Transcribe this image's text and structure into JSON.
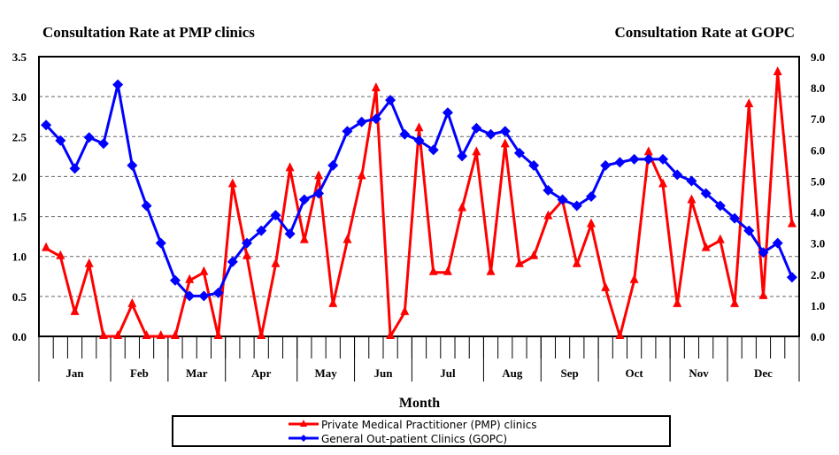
{
  "chart_data": {
    "type": "line",
    "title_left": "Consultation Rate at PMP clinics",
    "title_right": "Consultation Rate at GOPC",
    "xlabel": "Month",
    "months": [
      {
        "label": "Jan",
        "weeks": 5
      },
      {
        "label": "Feb",
        "weeks": 4
      },
      {
        "label": "Mar",
        "weeks": 4
      },
      {
        "label": "Apr",
        "weeks": 5
      },
      {
        "label": "May",
        "weeks": 4
      },
      {
        "label": "Jun",
        "weeks": 4
      },
      {
        "label": "Jul",
        "weeks": 5
      },
      {
        "label": "Aug",
        "weeks": 4
      },
      {
        "label": "Sep",
        "weeks": 4
      },
      {
        "label": "Oct",
        "weeks": 5
      },
      {
        "label": "Nov",
        "weeks": 4
      },
      {
        "label": "Dec",
        "weeks": 5
      }
    ],
    "y_left": {
      "min": 0,
      "max": 3.5,
      "step": 0.5,
      "ticks": [
        "0.0",
        "0.5",
        "1.0",
        "1.5",
        "2.0",
        "2.5",
        "3.0",
        "3.5"
      ]
    },
    "y_right": {
      "min": 0,
      "max": 9,
      "step": 1,
      "ticks": [
        "0.0",
        "1.0",
        "2.0",
        "3.0",
        "4.0",
        "5.0",
        "6.0",
        "7.0",
        "8.0",
        "9.0"
      ]
    },
    "grid": true,
    "legend_position": "bottom",
    "series": [
      {
        "name": "Private Medical Practitioner (PMP) clinics",
        "axis": "left",
        "color": "#ff0000",
        "marker": "triangle",
        "values": [
          1.1,
          1.0,
          0.3,
          0.9,
          0,
          0,
          0.4,
          0,
          0,
          0,
          0.7,
          0.8,
          0,
          1.9,
          1.0,
          0,
          0.9,
          2.1,
          1.2,
          2.0,
          0.4,
          1.2,
          2.0,
          3.1,
          0,
          0.3,
          2.6,
          0.8,
          0.8,
          1.6,
          2.3,
          0.8,
          2.4,
          0.9,
          1.0,
          1.5,
          1.7,
          0.9,
          1.4,
          0.6,
          0,
          0.7,
          2.3,
          1.9,
          0.4,
          1.7,
          1.1,
          1.2,
          0.4,
          2.9,
          0.5,
          3.3,
          1.4
        ]
      },
      {
        "name": "General Out-patient Clinics (GOPC)",
        "axis": "right",
        "color": "#0000ff",
        "marker": "diamond",
        "values": [
          6.8,
          6.3,
          5.4,
          6.4,
          6.2,
          8.1,
          5.5,
          4.2,
          3.0,
          1.8,
          1.3,
          1.3,
          1.4,
          2.4,
          3.0,
          3.4,
          3.9,
          3.3,
          4.4,
          4.6,
          5.5,
          6.6,
          6.9,
          7.0,
          7.6,
          6.5,
          6.3,
          6.0,
          7.2,
          5.8,
          6.7,
          6.5,
          6.6,
          5.9,
          5.5,
          4.7,
          4.4,
          4.2,
          4.5,
          5.5,
          5.6,
          5.7,
          5.7,
          5.7,
          5.2,
          5.0,
          4.6,
          4.2,
          3.8,
          3.4,
          2.7,
          3.0,
          1.9
        ]
      }
    ]
  }
}
